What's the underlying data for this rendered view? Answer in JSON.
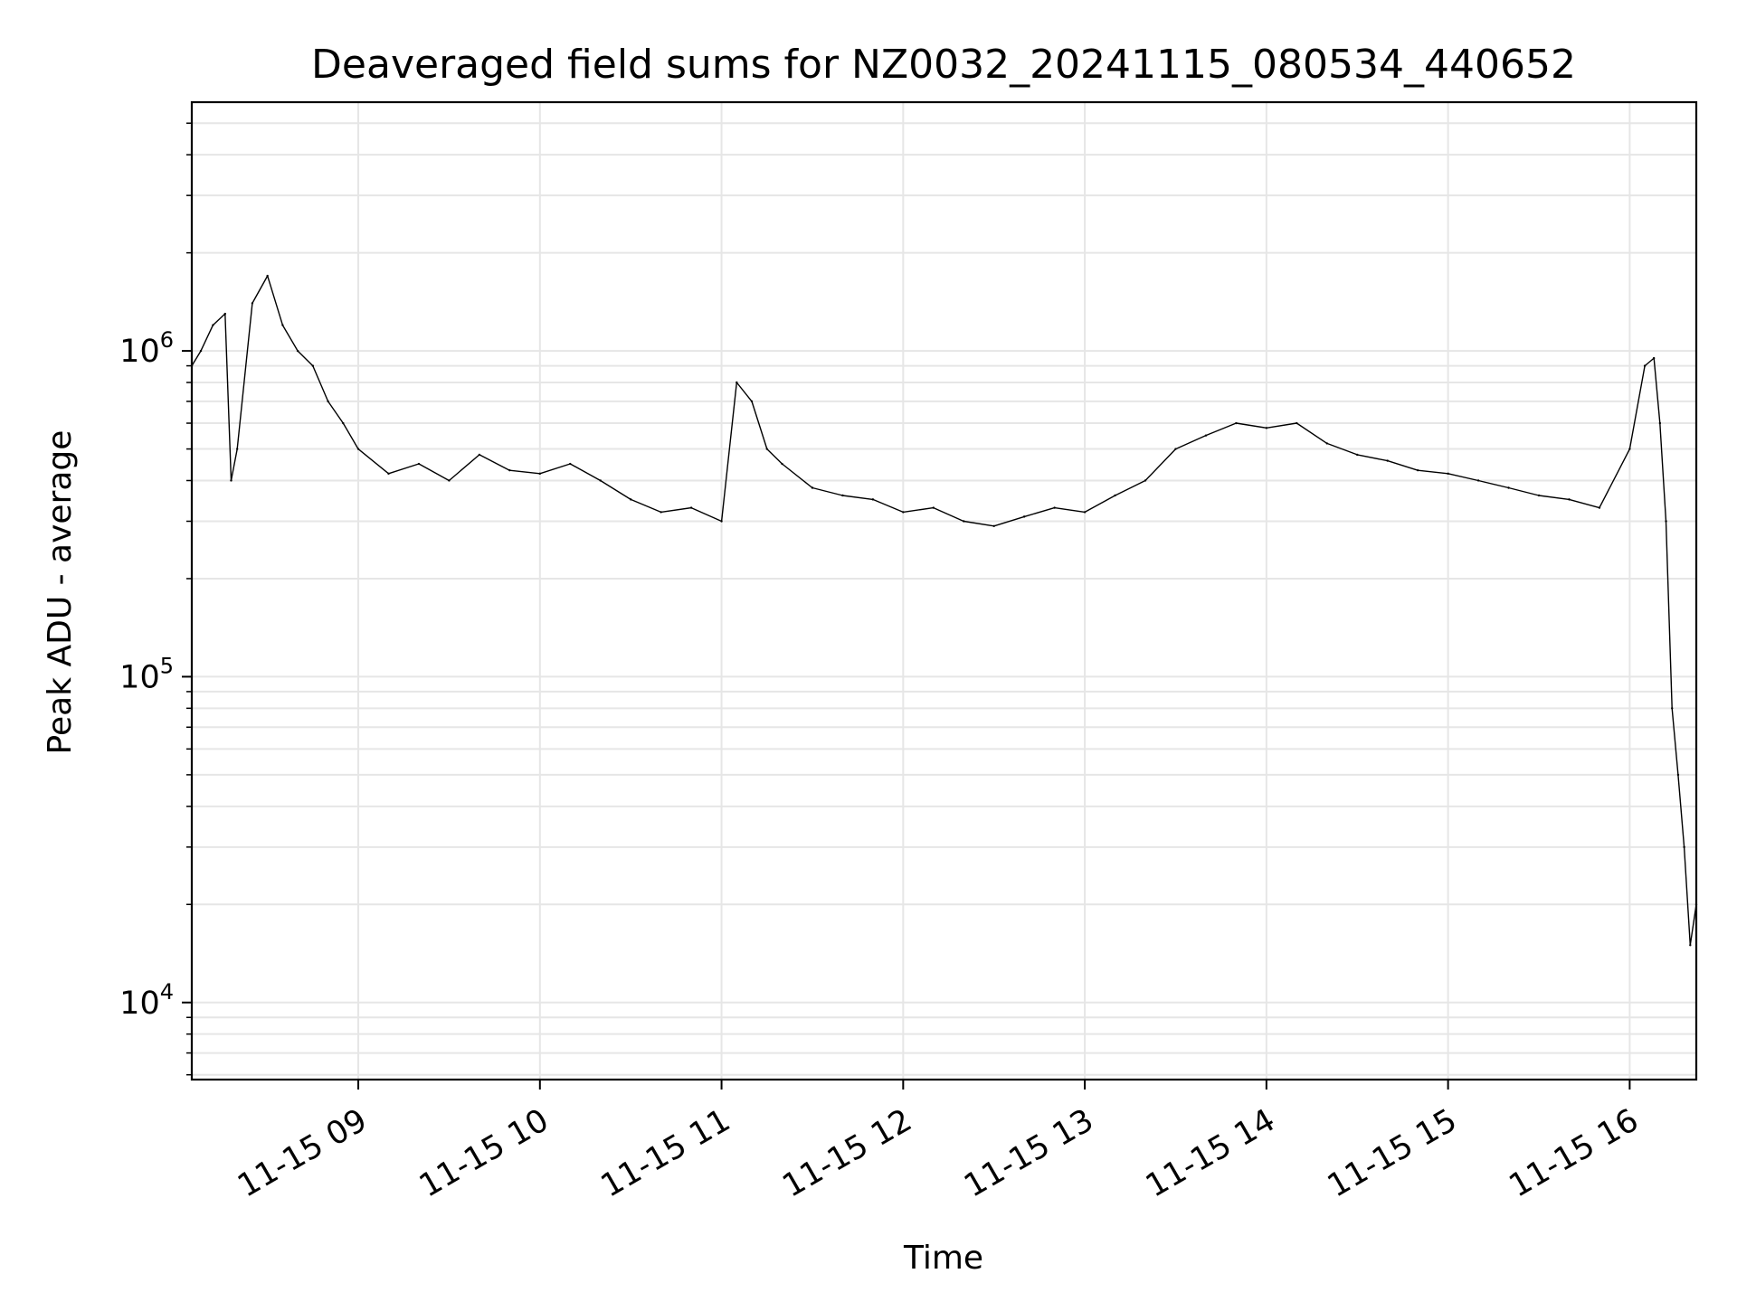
{
  "chart_data": {
    "type": "line",
    "title": "Deaveraged field sums for NZ0032_20241115_080534_440652",
    "xlabel": "Time",
    "ylabel": "Peak ADU - average",
    "y_scale": "log",
    "grid": true,
    "legend": "none",
    "line_color": "#000000",
    "grid_color": "#e6e6e6",
    "x_range": [
      "2024-11-15 08:05",
      "2024-11-15 16:22"
    ],
    "ylim": [
      5800,
      5800000
    ],
    "x_ticks": [
      {
        "value": "2024-11-15 09:00",
        "label": "11-15 09"
      },
      {
        "value": "2024-11-15 10:00",
        "label": "11-15 10"
      },
      {
        "value": "2024-11-15 11:00",
        "label": "11-15 11"
      },
      {
        "value": "2024-11-15 12:00",
        "label": "11-15 12"
      },
      {
        "value": "2024-11-15 13:00",
        "label": "11-15 13"
      },
      {
        "value": "2024-11-15 14:00",
        "label": "11-15 14"
      },
      {
        "value": "2024-11-15 15:00",
        "label": "11-15 15"
      },
      {
        "value": "2024-11-15 16:00",
        "label": "11-15 16"
      }
    ],
    "y_ticks": [
      {
        "value": 10000,
        "base": "10",
        "exp": "4"
      },
      {
        "value": 100000,
        "base": "10",
        "exp": "5"
      },
      {
        "value": 1000000,
        "base": "10",
        "exp": "6"
      }
    ],
    "series": [
      {
        "x": [
          "2024-11-15 08:05",
          "2024-11-15 08:08",
          "2024-11-15 08:12",
          "2024-11-15 08:16",
          "2024-11-15 08:18",
          "2024-11-15 08:20",
          "2024-11-15 08:25",
          "2024-11-15 08:30",
          "2024-11-15 08:35",
          "2024-11-15 08:40",
          "2024-11-15 08:45",
          "2024-11-15 08:50",
          "2024-11-15 08:55",
          "2024-11-15 09:00",
          "2024-11-15 09:10",
          "2024-11-15 09:20",
          "2024-11-15 09:30",
          "2024-11-15 09:40",
          "2024-11-15 09:50",
          "2024-11-15 10:00",
          "2024-11-15 10:10",
          "2024-11-15 10:20",
          "2024-11-15 10:30",
          "2024-11-15 10:40",
          "2024-11-15 10:50",
          "2024-11-15 11:00",
          "2024-11-15 11:05",
          "2024-11-15 11:10",
          "2024-11-15 11:15",
          "2024-11-15 11:20",
          "2024-11-15 11:30",
          "2024-11-15 11:40",
          "2024-11-15 11:50",
          "2024-11-15 12:00",
          "2024-11-15 12:10",
          "2024-11-15 12:20",
          "2024-11-15 12:30",
          "2024-11-15 12:40",
          "2024-11-15 12:50",
          "2024-11-15 13:00",
          "2024-11-15 13:10",
          "2024-11-15 13:20",
          "2024-11-15 13:30",
          "2024-11-15 13:40",
          "2024-11-15 13:50",
          "2024-11-15 14:00",
          "2024-11-15 14:10",
          "2024-11-15 14:20",
          "2024-11-15 14:30",
          "2024-11-15 14:40",
          "2024-11-15 14:50",
          "2024-11-15 15:00",
          "2024-11-15 15:10",
          "2024-11-15 15:20",
          "2024-11-15 15:30",
          "2024-11-15 15:40",
          "2024-11-15 15:50",
          "2024-11-15 16:00",
          "2024-11-15 16:05",
          "2024-11-15 16:08",
          "2024-11-15 16:10",
          "2024-11-15 16:12",
          "2024-11-15 16:14",
          "2024-11-15 16:16",
          "2024-11-15 16:18",
          "2024-11-15 16:20",
          "2024-11-15 16:22"
        ],
        "values": [
          900000,
          1000000,
          1200000,
          1300000,
          400000,
          500000,
          1400000,
          1700000,
          1200000,
          1000000,
          900000,
          700000,
          600000,
          500000,
          420000,
          450000,
          400000,
          480000,
          430000,
          420000,
          450000,
          400000,
          350000,
          320000,
          330000,
          300000,
          800000,
          700000,
          500000,
          450000,
          380000,
          360000,
          350000,
          320000,
          330000,
          300000,
          290000,
          310000,
          330000,
          320000,
          360000,
          400000,
          500000,
          550000,
          600000,
          580000,
          600000,
          520000,
          480000,
          460000,
          430000,
          420000,
          400000,
          380000,
          360000,
          350000,
          330000,
          500000,
          900000,
          950000,
          600000,
          300000,
          80000,
          50000,
          30000,
          15000,
          20000
        ],
        "note_ignored": ""
      }
    ]
  }
}
